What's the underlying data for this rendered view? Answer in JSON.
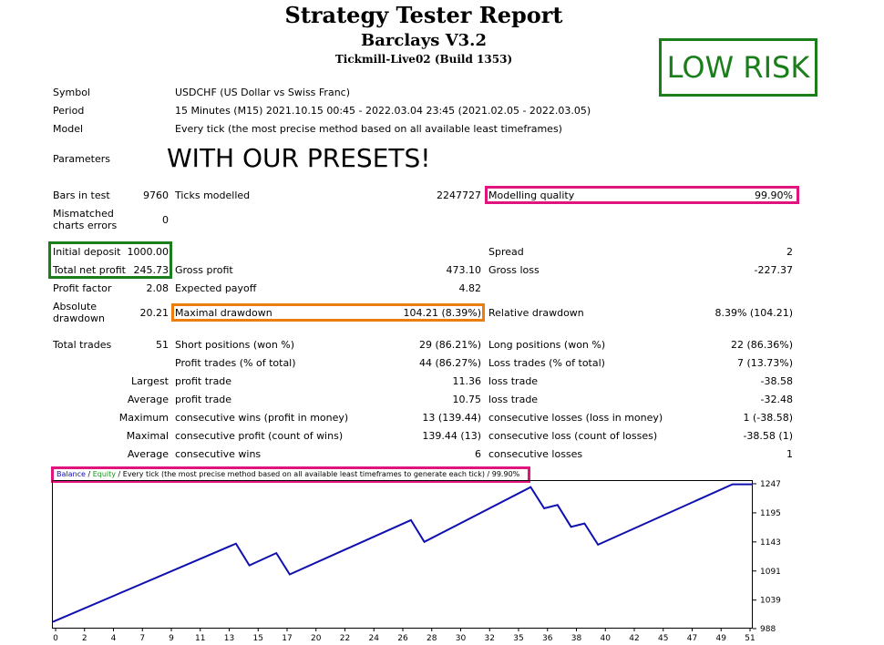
{
  "header": {
    "title": "Strategy Tester Report",
    "ea_name": "Barclays V3.2",
    "server": "Tickmill-Live02 (Build 1353)",
    "badge": "LOW RISK",
    "presets_note": "WITH OUR PRESETS!"
  },
  "info": {
    "symbol_label": "Symbol",
    "symbol_value": "USDCHF (US Dollar vs Swiss Franc)",
    "period_label": "Period",
    "period_value": "15 Minutes (M15) 2021.10.15 00:45 - 2022.03.04 23:45 (2021.02.05 - 2022.03.05)",
    "model_label": "Model",
    "model_value": "Every tick (the most precise method based on all available least timeframes)",
    "parameters_label": "Parameters"
  },
  "stats": {
    "bars_label": "Bars in test",
    "bars_value": "9760",
    "ticks_label": "Ticks modelled",
    "ticks_value": "2247727",
    "quality_label": "Modelling quality",
    "quality_value": "99.90%",
    "mismatch_label_1": "Mismatched",
    "mismatch_label_2": "charts errors",
    "mismatch_value": "0",
    "deposit_label": "Initial deposit",
    "deposit_value": "1000.00",
    "spread_label": "Spread",
    "spread_value": "2",
    "net_label": "Total net profit",
    "net_value": "245.73",
    "gross_profit_label": "Gross profit",
    "gross_profit_value": "473.10",
    "gross_loss_label": "Gross loss",
    "gross_loss_value": "-227.37",
    "pf_label": "Profit factor",
    "pf_value": "2.08",
    "payoff_label": "Expected payoff",
    "payoff_value": "4.82",
    "abs_dd_label_1": "Absolute",
    "abs_dd_label_2": "drawdown",
    "abs_dd_value": "20.21",
    "max_dd_label": "Maximal drawdown",
    "max_dd_value": "104.21 (8.39%)",
    "rel_dd_label": "Relative drawdown",
    "rel_dd_value": "8.39% (104.21)",
    "trades_label": "Total trades",
    "trades_value": "51",
    "short_label": "Short positions (won %)",
    "short_value": "29 (86.21%)",
    "long_label": "Long positions (won %)",
    "long_value": "22 (86.36%)",
    "ptrades_label": "Profit trades (% of total)",
    "ptrades_value": "44 (86.27%)",
    "ltrades_label": "Loss trades (% of total)",
    "ltrades_value": "7 (13.73%)",
    "largest_label": "Largest",
    "largest_profit_label": "profit trade",
    "largest_profit_value": "11.36",
    "largest_loss_label": "loss trade",
    "largest_loss_value": "-38.58",
    "average_label": "Average",
    "avg_profit_label": "profit trade",
    "avg_profit_value": "10.75",
    "avg_loss_label": "loss trade",
    "avg_loss_value": "-32.48",
    "maximum_label": "Maximum",
    "max_cw_label": "consecutive wins (profit in money)",
    "max_cw_value": "13 (139.44)",
    "max_cl_label": "consecutive losses (loss in money)",
    "max_cl_value": "1 (-38.58)",
    "maximal_label": "Maximal",
    "mx_cp_label": "consecutive profit (count of wins)",
    "mx_cp_value": "139.44 (13)",
    "mx_cl_label": "consecutive loss (count of losses)",
    "mx_cl_value": "-38.58 (1)",
    "average2_label": "Average",
    "avg_cw_label": "consecutive wins",
    "avg_cw_value": "6",
    "avg_cl_label": "consecutive losses",
    "avg_cl_value": "1"
  },
  "legend": {
    "balance": "Balance",
    "sep": " / ",
    "equity": "Equity",
    "rest": " / Every tick (the most precise method based on all available least timeframes to generate each tick)",
    "quality": " / 99.90%"
  },
  "colors": {
    "balance": "#1010b0",
    "equity": "#119911",
    "pink": "#e0147c",
    "green": "#1a7f1a",
    "orange": "#ee7d10"
  },
  "chart_data": {
    "type": "line",
    "title": "",
    "xlabel": "",
    "ylabel": "",
    "x_ticks": [
      "0",
      "2",
      "4",
      "7",
      "9",
      "11",
      "13",
      "15",
      "17",
      "20",
      "22",
      "24",
      "26",
      "28",
      "30",
      "32",
      "35",
      "36",
      "38",
      "40",
      "42",
      "45",
      "47",
      "49",
      "51"
    ],
    "y_ticks": [
      "988",
      "1039",
      "1091",
      "1143",
      "1195",
      "1247"
    ],
    "xlim": [
      0,
      52
    ],
    "ylim": [
      988,
      1247
    ],
    "series": [
      {
        "name": "Balance",
        "x": [
          0,
          13.6,
          14.6,
          16.6,
          17.6,
          26.6,
          27.6,
          35.5,
          36.5,
          37.5,
          38.5,
          39.5,
          40.5,
          50.5,
          52
        ],
        "values": [
          1000,
          1140,
          1101,
          1123,
          1085,
          1182,
          1143,
          1241,
          1203,
          1209,
          1170,
          1176,
          1138,
          1246,
          1246
        ]
      }
    ]
  }
}
